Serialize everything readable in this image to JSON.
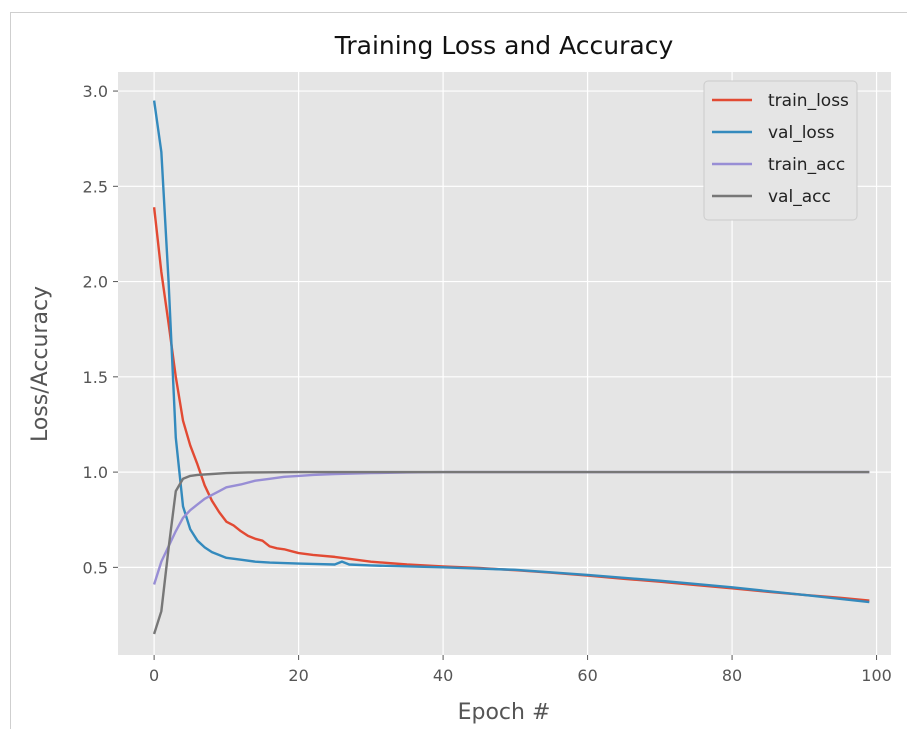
{
  "chart_data": {
    "type": "line",
    "title": "Training Loss and Accuracy",
    "xlabel": "Epoch #",
    "ylabel": "Loss/Accuracy",
    "xlim": [
      -5,
      102
    ],
    "ylim": [
      0.04,
      3.1
    ],
    "xticks": [
      0,
      20,
      40,
      60,
      80,
      100
    ],
    "yticks": [
      0.5,
      1.0,
      1.5,
      2.0,
      2.5,
      3.0
    ],
    "ytick_labels": [
      "0.5",
      "1.0",
      "1.5",
      "2.0",
      "2.5",
      "3.0"
    ],
    "grid": true,
    "legend_position": "top-right",
    "series": [
      {
        "name": "train_loss",
        "color": "#E24A33",
        "points": [
          [
            0,
            2.39
          ],
          [
            1,
            2.05
          ],
          [
            2,
            1.78
          ],
          [
            3,
            1.5
          ],
          [
            4,
            1.27
          ],
          [
            5,
            1.14
          ],
          [
            6,
            1.04
          ],
          [
            7,
            0.93
          ],
          [
            8,
            0.85
          ],
          [
            9,
            0.79
          ],
          [
            10,
            0.74
          ],
          [
            11,
            0.72
          ],
          [
            12,
            0.69
          ],
          [
            13,
            0.665
          ],
          [
            14,
            0.65
          ],
          [
            15,
            0.64
          ],
          [
            16,
            0.61
          ],
          [
            17,
            0.6
          ],
          [
            18,
            0.595
          ],
          [
            19,
            0.585
          ],
          [
            20,
            0.575
          ],
          [
            22,
            0.565
          ],
          [
            25,
            0.555
          ],
          [
            27,
            0.545
          ],
          [
            30,
            0.53
          ],
          [
            35,
            0.515
          ],
          [
            40,
            0.505
          ],
          [
            45,
            0.497
          ],
          [
            50,
            0.485
          ],
          [
            55,
            0.472
          ],
          [
            60,
            0.457
          ],
          [
            65,
            0.44
          ],
          [
            70,
            0.425
          ],
          [
            75,
            0.407
          ],
          [
            80,
            0.39
          ],
          [
            85,
            0.372
          ],
          [
            90,
            0.355
          ],
          [
            95,
            0.34
          ],
          [
            99,
            0.326
          ]
        ]
      },
      {
        "name": "val_loss",
        "color": "#348ABD",
        "points": [
          [
            0,
            2.95
          ],
          [
            1,
            2.68
          ],
          [
            2,
            2.0
          ],
          [
            3,
            1.18
          ],
          [
            4,
            0.82
          ],
          [
            5,
            0.7
          ],
          [
            6,
            0.64
          ],
          [
            7,
            0.605
          ],
          [
            8,
            0.58
          ],
          [
            9,
            0.565
          ],
          [
            10,
            0.55
          ],
          [
            12,
            0.54
          ],
          [
            14,
            0.53
          ],
          [
            16,
            0.525
          ],
          [
            20,
            0.52
          ],
          [
            22,
            0.518
          ],
          [
            25,
            0.515
          ],
          [
            26,
            0.53
          ],
          [
            27,
            0.515
          ],
          [
            30,
            0.51
          ],
          [
            40,
            0.5
          ],
          [
            50,
            0.487
          ],
          [
            60,
            0.46
          ],
          [
            70,
            0.43
          ],
          [
            80,
            0.395
          ],
          [
            90,
            0.355
          ],
          [
            99,
            0.318
          ]
        ]
      },
      {
        "name": "train_acc",
        "color": "#988ED5",
        "points": [
          [
            0,
            0.41
          ],
          [
            1,
            0.53
          ],
          [
            2,
            0.61
          ],
          [
            3,
            0.69
          ],
          [
            4,
            0.76
          ],
          [
            5,
            0.8
          ],
          [
            6,
            0.83
          ],
          [
            7,
            0.86
          ],
          [
            8,
            0.88
          ],
          [
            9,
            0.9
          ],
          [
            10,
            0.92
          ],
          [
            12,
            0.935
          ],
          [
            14,
            0.955
          ],
          [
            16,
            0.965
          ],
          [
            18,
            0.975
          ],
          [
            20,
            0.98
          ],
          [
            22,
            0.985
          ],
          [
            25,
            0.99
          ],
          [
            30,
            0.995
          ],
          [
            35,
            0.998
          ],
          [
            40,
            1.0
          ],
          [
            99,
            1.0
          ]
        ]
      },
      {
        "name": "val_acc",
        "color": "#777777",
        "points": [
          [
            0,
            0.15
          ],
          [
            1,
            0.27
          ],
          [
            2,
            0.6
          ],
          [
            3,
            0.9
          ],
          [
            4,
            0.965
          ],
          [
            5,
            0.98
          ],
          [
            6,
            0.985
          ],
          [
            8,
            0.99
          ],
          [
            10,
            0.995
          ],
          [
            13,
            0.998
          ],
          [
            16,
            0.999
          ],
          [
            20,
            1.0
          ],
          [
            99,
            1.0
          ]
        ]
      }
    ]
  }
}
